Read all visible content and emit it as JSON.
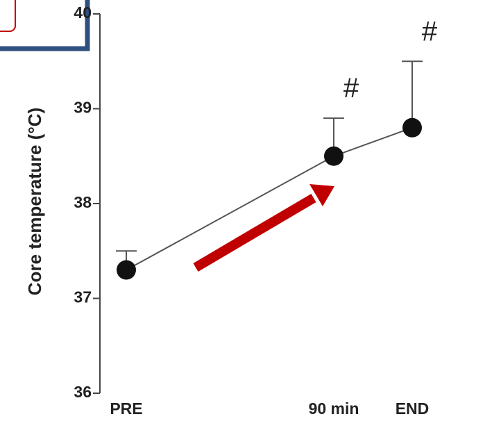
{
  "chart_data": {
    "type": "line",
    "categories": [
      "PRE",
      "90 min",
      "END"
    ],
    "series": [
      {
        "values": [
          37.3,
          38.5,
          38.8
        ],
        "error_upper": [
          37.5,
          38.9,
          39.5
        ]
      }
    ],
    "ylabel": "Core temperature (°C)",
    "ylim": [
      36,
      40
    ],
    "yticks": [
      36,
      37,
      38,
      39,
      40
    ],
    "annotations": [
      {
        "category": "90 min",
        "text": "#"
      },
      {
        "category": "END",
        "text": "#"
      }
    ],
    "grid": false
  },
  "colors": {
    "marker": "#111111",
    "line": "#555555",
    "arrow": "#c00000",
    "callout_border": "#2f4f7f",
    "callout_inner_border": "#c00000"
  }
}
